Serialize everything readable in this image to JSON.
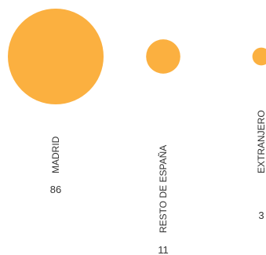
{
  "chart_data": {
    "type": "bubble",
    "categories": [
      "MADRID",
      "RESTO DE ESPAÑA",
      "EXTRANJERO"
    ],
    "values": [
      86,
      11,
      3
    ],
    "color": "#FBB040"
  }
}
